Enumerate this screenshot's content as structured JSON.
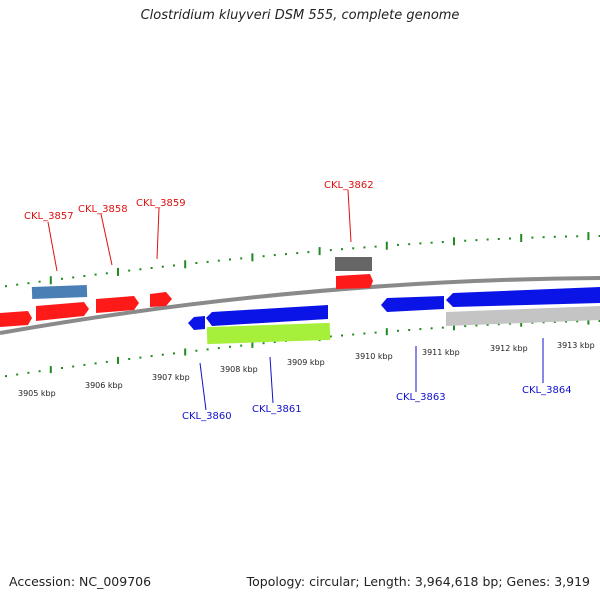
{
  "title": "Clostridium kluyveri DSM 555, complete genome",
  "footer": {
    "accession": "Accession: NC_009706",
    "summary": "Topology: circular; Length: 3,964,618 bp; Genes: 3,919"
  },
  "ticks": [
    "3905 kbp",
    "3906 kbp",
    "3907 kbp",
    "3908 kbp",
    "3909 kbp",
    "3910 kbp",
    "3911 kbp",
    "3912 kbp",
    "3913 kbp"
  ],
  "labels": {
    "forward": [
      "CKL_3857",
      "CKL_3858",
      "CKL_3859",
      "CKL_3862"
    ],
    "reverse": [
      "CKL_3860",
      "CKL_3861",
      "CKL_3863",
      "CKL_3864"
    ]
  },
  "colors": {
    "forward_cds": "#ff1a1a",
    "reverse_cds": "#0a14e6",
    "rna_gene": "#4a7fb5",
    "pseudo_gene": "#666666",
    "misc_feature": "#a6f03c",
    "gray_feature": "#c4c4c4",
    "backbone": "#8a8a8a",
    "tick_mark": "#1f8a1f",
    "forward_label": "#dd1111",
    "reverse_label": "#1111cc"
  }
}
